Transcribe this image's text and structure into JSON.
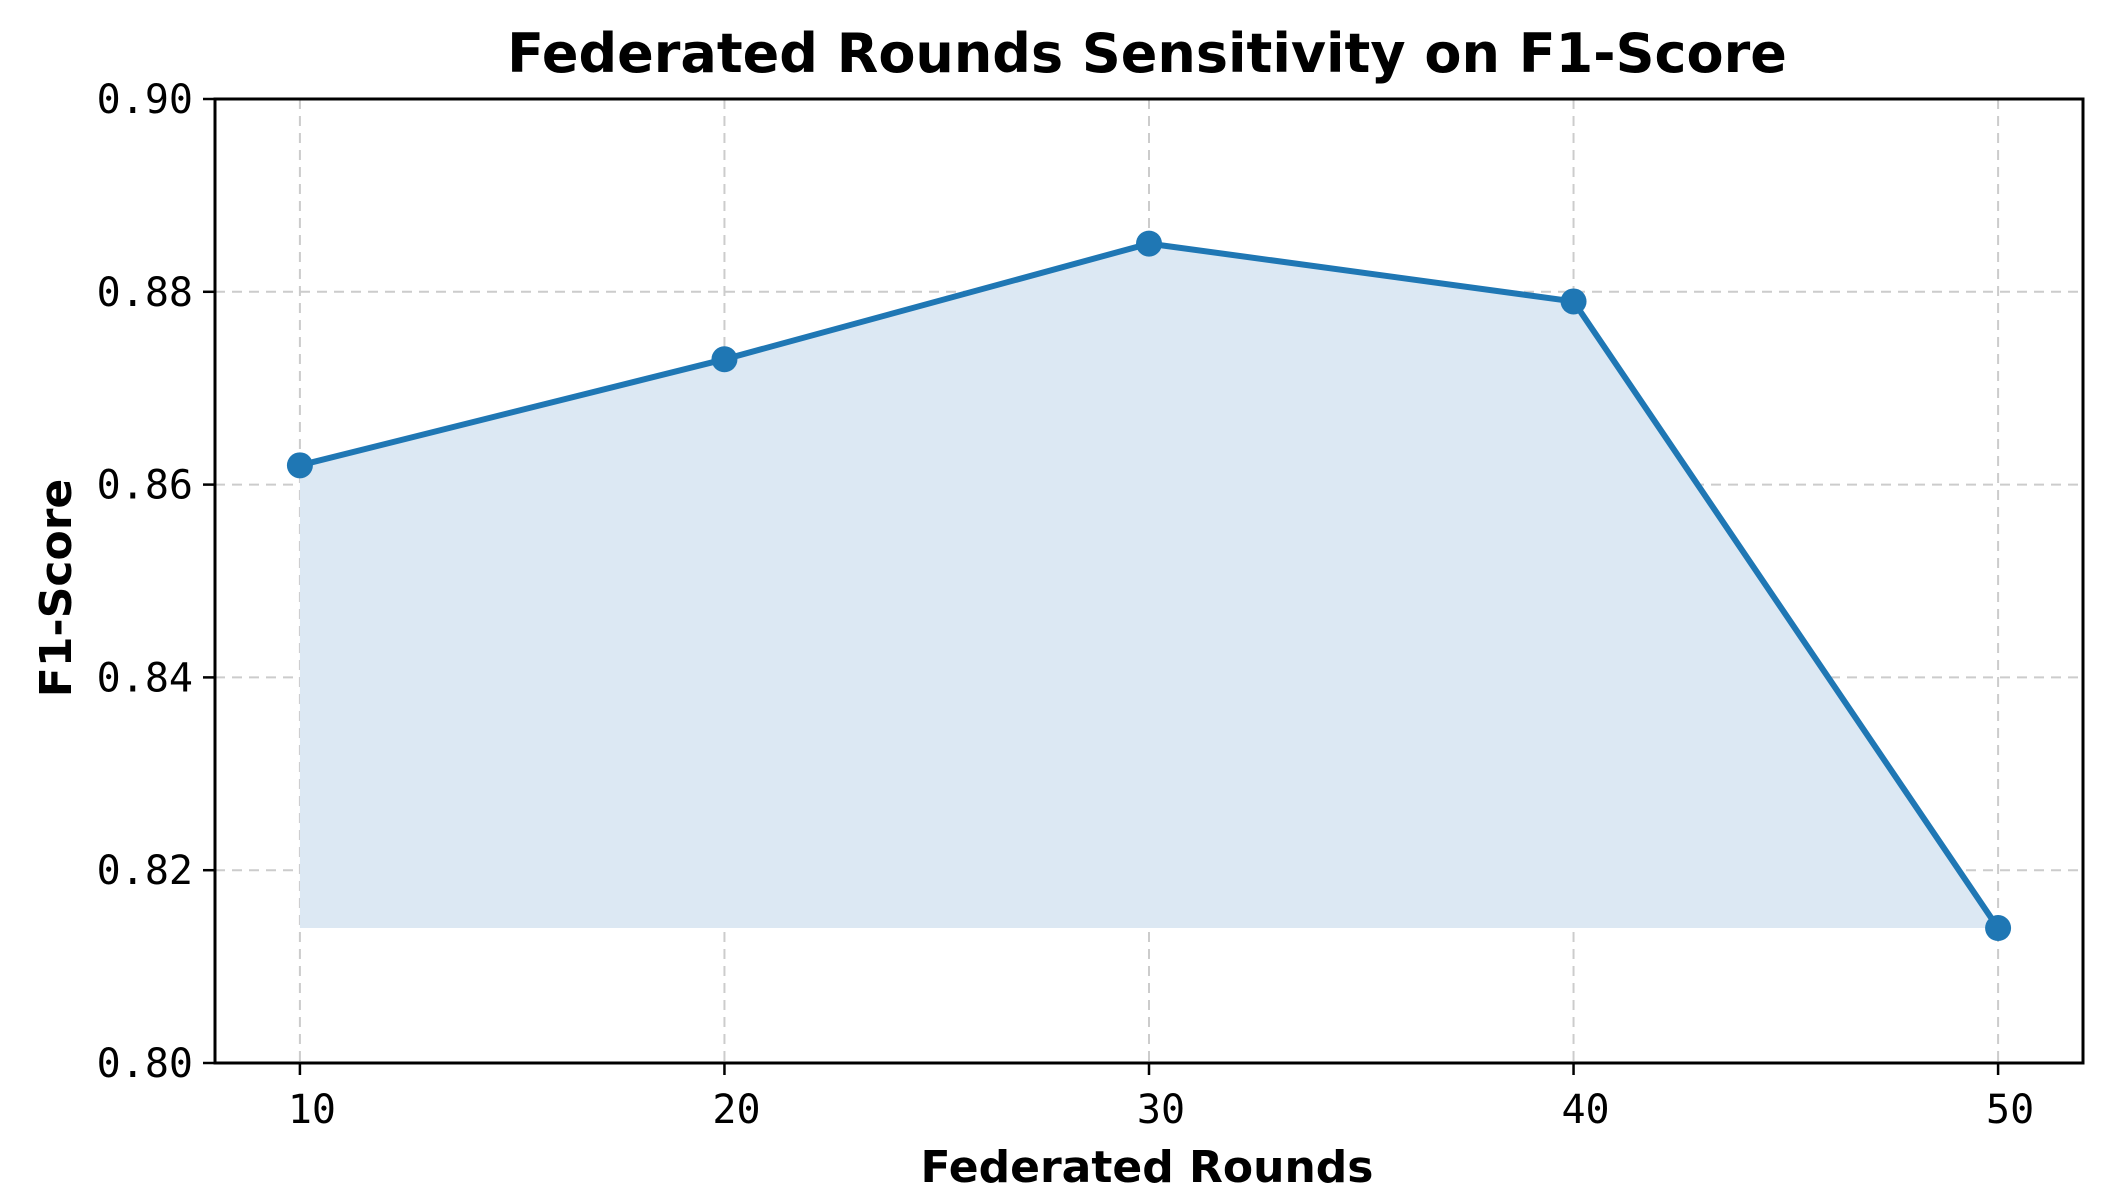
{
  "chart_data": {
    "type": "line",
    "title": "Federated Rounds Sensitivity on F1-Score",
    "xlabel": "Federated Rounds",
    "ylabel": "F1-Score",
    "x": [
      10,
      20,
      30,
      40,
      50
    ],
    "x_tick_labels": [
      "10",
      "20",
      "30",
      "40",
      "50"
    ],
    "y_tick_labels": [
      "0.80",
      "0.82",
      "0.84",
      "0.86",
      "0.88",
      "0.90"
    ],
    "y_ticks": [
      0.8,
      0.82,
      0.84,
      0.86,
      0.88,
      0.9
    ],
    "series": [
      {
        "values": [
          0.862,
          0.873,
          0.885,
          0.879,
          0.814
        ],
        "color": "#1f77b4",
        "fill_color": "#dce8f3",
        "fill_to": 0.814
      }
    ],
    "xlim": [
      8,
      52
    ],
    "ylim": [
      0.8,
      0.9
    ],
    "grid": true
  }
}
